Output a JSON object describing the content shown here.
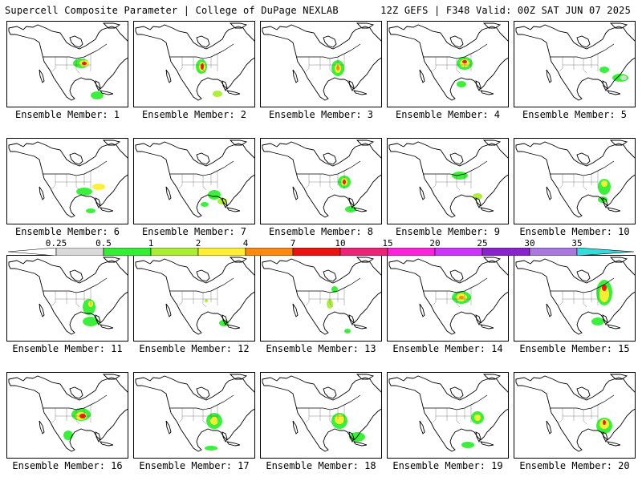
{
  "header": {
    "title": "Supercell Composite Parameter | College of DuPage NEXLAB",
    "run_info": "12Z GEFS | F348 Valid: 00Z SAT JUN 07 2025"
  },
  "colorbar": {
    "labels": [
      "0.25",
      "0.5",
      "1",
      "2",
      "4",
      "7",
      "10",
      "15",
      "20",
      "25",
      "30",
      "35"
    ],
    "colors": [
      "#ffffff",
      "#d9d9d9",
      "#33ee33",
      "#aaee33",
      "#ffee33",
      "#ff8811",
      "#ee1111",
      "#ee2277",
      "#ff22dd",
      "#cc33ff",
      "#8822cc",
      "#aa77dd",
      "#33dddd"
    ]
  },
  "members": [
    {
      "label": "Ensemble Member: 1"
    },
    {
      "label": "Ensemble Member: 2"
    },
    {
      "label": "Ensemble Member: 3"
    },
    {
      "label": "Ensemble Member: 4"
    },
    {
      "label": "Ensemble Member: 5"
    },
    {
      "label": "Ensemble Member: 6"
    },
    {
      "label": "Ensemble Member: 7"
    },
    {
      "label": "Ensemble Member: 8"
    },
    {
      "label": "Ensemble Member: 9"
    },
    {
      "label": "Ensemble Member: 10"
    },
    {
      "label": "Ensemble Member: 11"
    },
    {
      "label": "Ensemble Member: 12"
    },
    {
      "label": "Ensemble Member: 13"
    },
    {
      "label": "Ensemble Member: 14"
    },
    {
      "label": "Ensemble Member: 15"
    },
    {
      "label": "Ensemble Member: 16"
    },
    {
      "label": "Ensemble Member: 17"
    },
    {
      "label": "Ensemble Member: 18"
    },
    {
      "label": "Ensemble Member: 19"
    },
    {
      "label": "Ensemble Member: 20"
    }
  ]
}
